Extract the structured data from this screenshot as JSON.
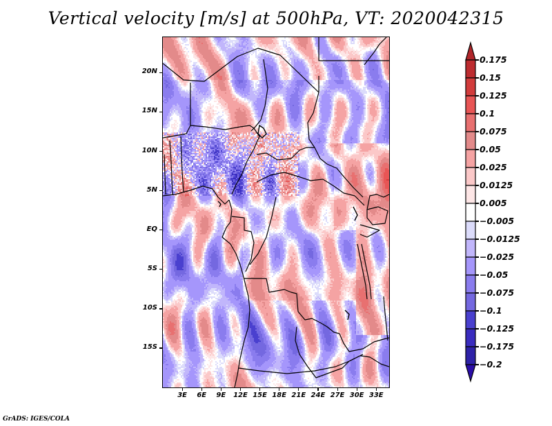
{
  "chart_data": {
    "type": "heatmap",
    "title": "Vertical velocity [m/s] at 500hPa, VT: 2020042315",
    "variable": "Vertical velocity",
    "units": "m/s",
    "level": "500hPa",
    "valid_time": "2020042315",
    "xlabel": "",
    "ylabel": "",
    "x_range_deg_lon": [
      0,
      35
    ],
    "y_range_deg_lat": [
      -20,
      24.5
    ],
    "x_ticks": [
      {
        "value": 3,
        "label": "3E"
      },
      {
        "value": 6,
        "label": "6E"
      },
      {
        "value": 9,
        "label": "9E"
      },
      {
        "value": 12,
        "label": "12E"
      },
      {
        "value": 15,
        "label": "15E"
      },
      {
        "value": 18,
        "label": "18E"
      },
      {
        "value": 21,
        "label": "21E"
      },
      {
        "value": 24,
        "label": "24E"
      },
      {
        "value": 27,
        "label": "27E"
      },
      {
        "value": 30,
        "label": "30E"
      },
      {
        "value": 33,
        "label": "33E"
      }
    ],
    "y_ticks": [
      {
        "value": 20,
        "label": "20N"
      },
      {
        "value": 15,
        "label": "15N"
      },
      {
        "value": 10,
        "label": "10N"
      },
      {
        "value": 5,
        "label": "5N"
      },
      {
        "value": 0,
        "label": "EQ"
      },
      {
        "value": -5,
        "label": "5S"
      },
      {
        "value": -10,
        "label": "10S"
      },
      {
        "value": -15,
        "label": "15S"
      }
    ],
    "colorbar": {
      "orientation": "vertical",
      "placement": "right",
      "extend": "both",
      "levels": [
        0.175,
        0.15,
        0.125,
        0.1,
        0.075,
        0.05,
        0.025,
        0.0125,
        0.005,
        -0.005,
        -0.0125,
        -0.025,
        -0.05,
        -0.075,
        -0.1,
        -0.125,
        -0.175,
        -0.2
      ],
      "level_labels": [
        "0.175",
        "0.15",
        "0.125",
        "0.1",
        "0.075",
        "0.05",
        "0.025",
        "0.0125",
        "0.005",
        "−0.005",
        "−0.0125",
        "−0.025",
        "−0.05",
        "−0.075",
        "−0.1",
        "−0.125",
        "−0.175",
        "−0.2"
      ],
      "colors_top_to_bottom": [
        "#b0262a",
        "#bd2c30",
        "#d23c3c",
        "#e85555",
        "#e87070",
        "#e38a8a",
        "#f5a3a3",
        "#fbc8c8",
        "#fde6e6",
        "#ffffff",
        "#dcdcfb",
        "#c1b6fb",
        "#a596fb",
        "#8a7cee",
        "#7468e0",
        "#4a40cf",
        "#3a2cbf",
        "#2e22a8",
        "#2a0da8"
      ]
    },
    "field_description": "Mixed positive (red) and negative (blue) vertical velocity over central/western Africa and the South Atlantic; mostly weak negative values over ocean, scattered convective dipoles over land, stronger positive values over East African highlands near 30-33E",
    "grid": false,
    "legend": "right"
  },
  "credit": "GrADS: IGES/COLA"
}
